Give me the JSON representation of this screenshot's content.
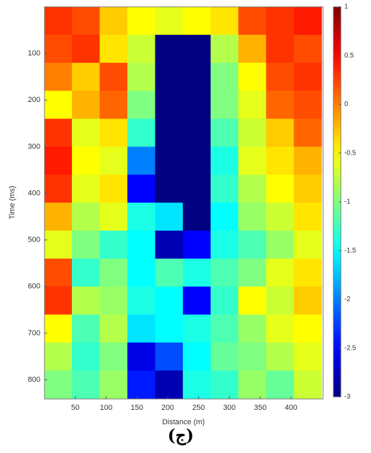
{
  "chart_data": {
    "type": "heatmap",
    "x_label": "Distance (m)",
    "y_label": "Time (ms)",
    "caption": "(ج)",
    "x": [
      22,
      67,
      112,
      157,
      202,
      247,
      292,
      337,
      382,
      427
    ],
    "y": [
      30,
      90,
      150,
      210,
      270,
      330,
      390,
      450,
      510,
      570,
      630,
      690,
      750,
      810
    ],
    "z": [
      [
        0.3,
        0.2,
        -0.3,
        -0.5,
        -0.6,
        -0.5,
        -0.4,
        0.2,
        0.3,
        0.4
      ],
      [
        0.2,
        0.3,
        -0.4,
        -0.7,
        -3,
        -3,
        -0.8,
        -0.2,
        0.3,
        0.2
      ],
      [
        0.0,
        -0.3,
        0.2,
        -0.8,
        -3,
        -3,
        -1.0,
        -0.5,
        0.2,
        0.3
      ],
      [
        -0.5,
        -0.2,
        0.1,
        -1.0,
        -3,
        -3,
        -1.0,
        -0.6,
        0.1,
        0.2
      ],
      [
        0.3,
        -0.6,
        -0.4,
        -1.3,
        -3,
        -3,
        -1.2,
        -0.7,
        -0.3,
        0.1
      ],
      [
        0.4,
        -0.5,
        -0.6,
        -2.0,
        -3,
        -3,
        -1.4,
        -0.6,
        -0.4,
        -0.2
      ],
      [
        0.3,
        -0.6,
        -0.4,
        -2.5,
        -3,
        -3,
        -1.3,
        -0.8,
        -0.5,
        -0.3
      ],
      [
        -0.2,
        -0.8,
        -0.6,
        -1.4,
        -1.6,
        -3,
        -1.5,
        -0.9,
        -0.7,
        -0.4
      ],
      [
        -0.6,
        -1.0,
        -1.3,
        -1.5,
        -2.8,
        -2.5,
        -1.4,
        -1.2,
        -0.9,
        -0.6
      ],
      [
        0.2,
        -1.3,
        -1.0,
        -1.5,
        -1.2,
        -1.4,
        -1.2,
        -1.0,
        -0.6,
        -0.4
      ],
      [
        0.3,
        -0.8,
        -0.9,
        -1.4,
        -1.5,
        -2.5,
        -1.3,
        -0.5,
        -0.7,
        -0.3
      ],
      [
        -0.5,
        -1.2,
        -0.8,
        -1.6,
        -1.5,
        -1.4,
        -1.2,
        -0.9,
        -0.6,
        -0.5
      ],
      [
        -0.8,
        -1.3,
        -1.0,
        -2.6,
        -2.2,
        -1.5,
        -1.1,
        -1.0,
        -0.8,
        -0.6
      ],
      [
        -1.0,
        -1.2,
        -0.9,
        -2.4,
        -2.8,
        -1.4,
        -1.3,
        -0.9,
        -1.1,
        -0.7
      ]
    ],
    "xlim": [
      0,
      452
    ],
    "xticks": [
      50,
      100,
      150,
      200,
      250,
      300,
      350,
      400
    ],
    "ylim": [
      0,
      841
    ],
    "yticks": [
      100,
      200,
      300,
      400,
      500,
      600,
      700,
      800
    ],
    "y_reversed": true,
    "colormap": "jet",
    "clim": [
      -3,
      1
    ],
    "colorbar_ticks": [
      1,
      0.5,
      0,
      -0.5,
      -1,
      -1.5,
      -2,
      -2.5,
      -3
    ]
  }
}
